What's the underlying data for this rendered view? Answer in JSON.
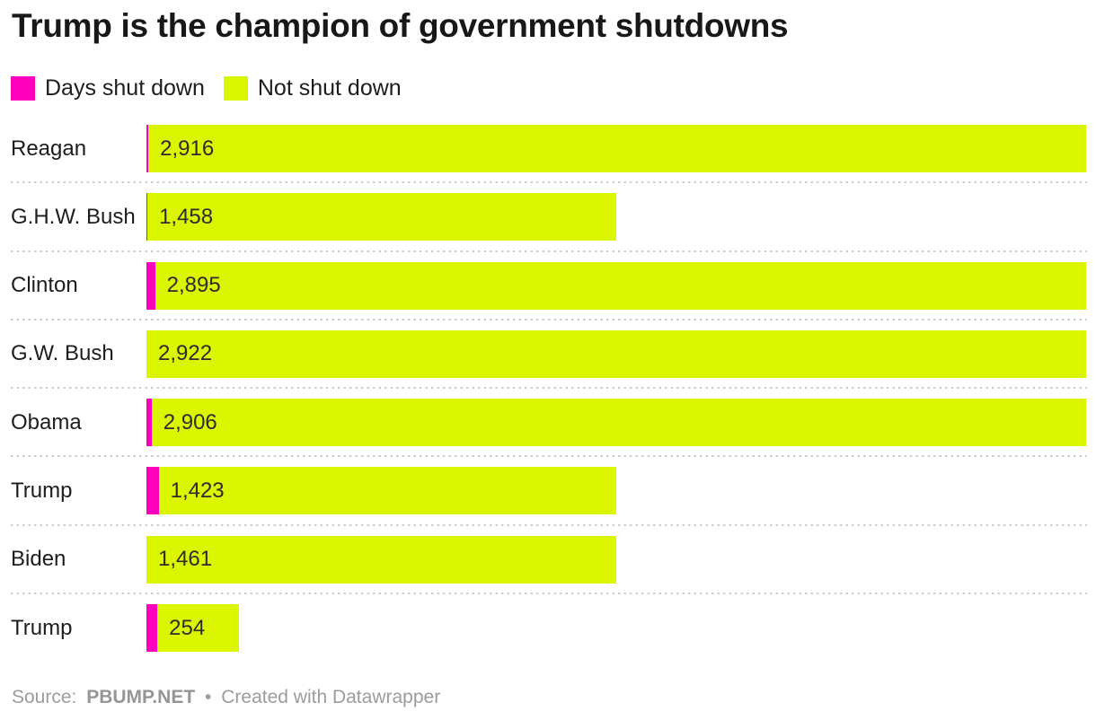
{
  "header": {
    "title": "Trump is the champion of government shutdowns"
  },
  "legend": {
    "items": [
      {
        "label": "Days shut down",
        "color": "#ff00bf"
      },
      {
        "label": "Not shut down",
        "color": "#dcf500"
      }
    ]
  },
  "chart_data": {
    "type": "bar",
    "subtype": "horizontal-stacked",
    "title": "Trump is the champion of government shutdowns",
    "categories": [
      "Reagan",
      "G.H.W. Bush",
      "Clinton",
      "G.W. Bush",
      "Obama",
      "Trump",
      "Biden",
      "Trump"
    ],
    "series": [
      {
        "name": "Days shut down",
        "values": [
          6,
          3,
          27,
          0,
          16,
          38,
          0,
          34
        ]
      },
      {
        "name": "Not shut down",
        "values": [
          2916,
          1458,
          2895,
          2922,
          2906,
          1423,
          1461,
          254
        ]
      }
    ],
    "bar_labels": [
      "2,916",
      "1,458",
      "2,895",
      "2,922",
      "2,906",
      "1,423",
      "1,461",
      "254"
    ],
    "xlabel": "",
    "ylabel": "",
    "xlim": [
      0,
      2922
    ],
    "grid": "off",
    "legend_position": "top",
    "colors": {
      "days_shut_down": "#ff00bf",
      "not_shut_down": "#dcf500"
    },
    "separator_color": "#cdcdcd"
  },
  "footer": {
    "source_label": "Source:",
    "source_name": "PBUMP.NET",
    "separator": "•",
    "credit": "Created with Datawrapper"
  }
}
